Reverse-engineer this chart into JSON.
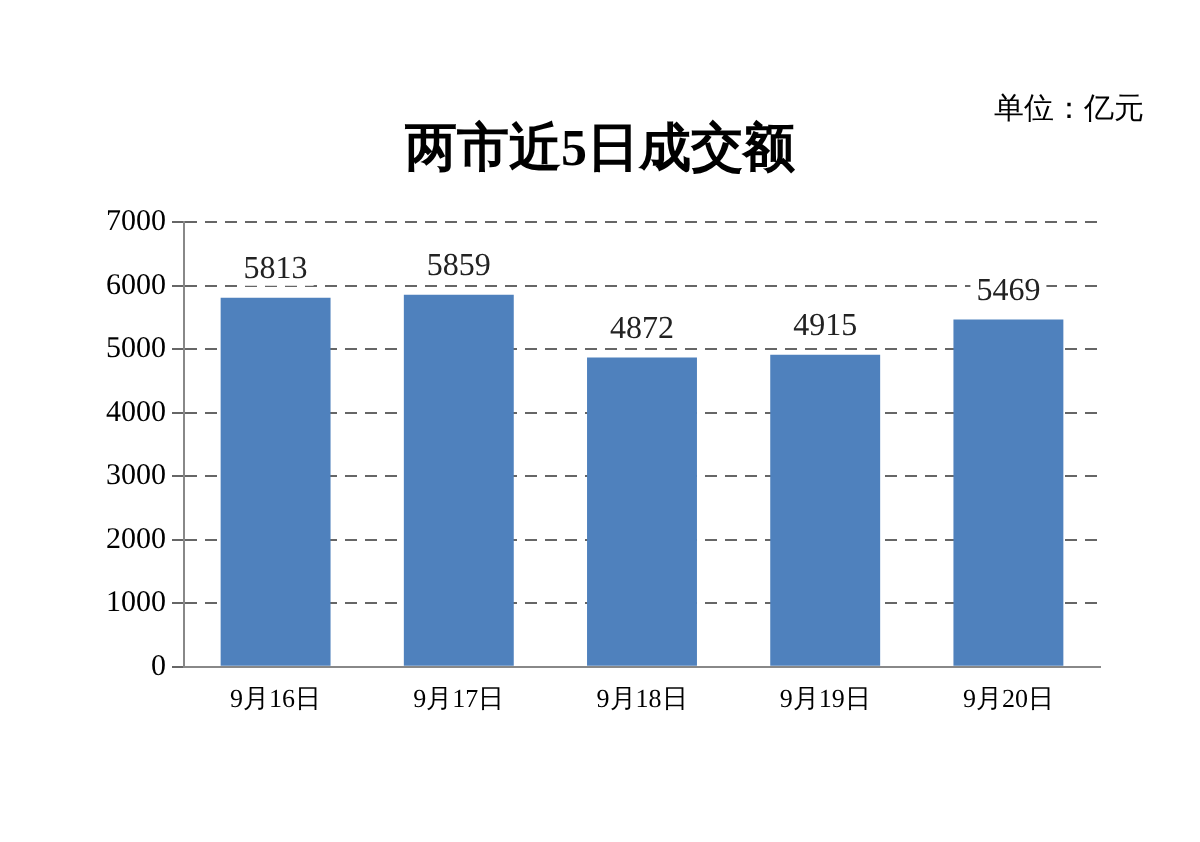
{
  "chart_data": {
    "type": "bar",
    "title": "两市近5日成交额",
    "annotations": [
      "单位：亿元"
    ],
    "categories": [
      "9月16日",
      "9月17日",
      "9月18日",
      "9月19日",
      "9月20日"
    ],
    "values": [
      5813,
      5859,
      4872,
      4915,
      5469
    ],
    "color": "#4f81bd",
    "ylim": [
      0,
      7000
    ],
    "yticks": [
      0,
      1000,
      2000,
      3000,
      4000,
      5000,
      6000,
      7000
    ],
    "grid": "y",
    "legend": false,
    "data_labels": true
  }
}
